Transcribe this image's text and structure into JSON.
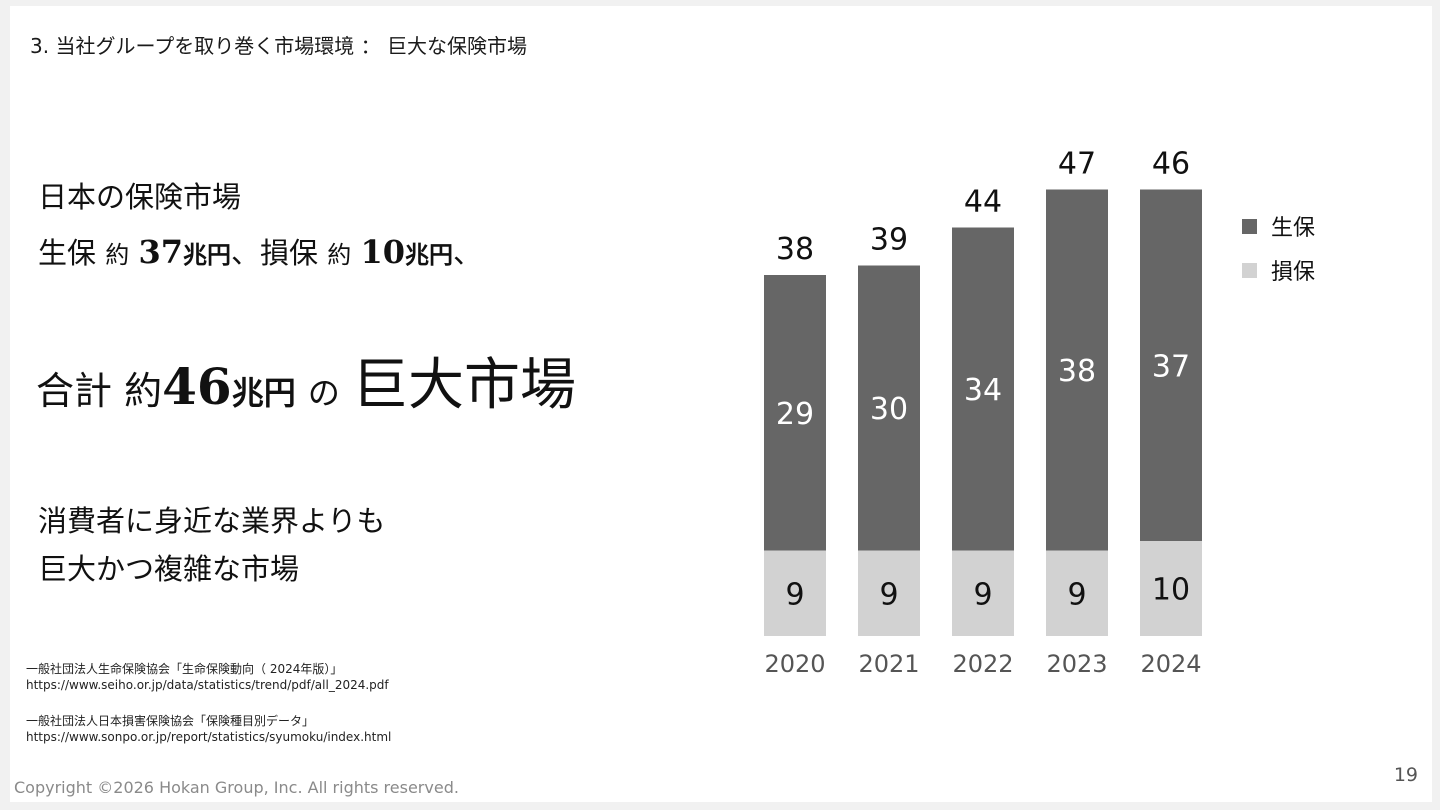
{
  "header": {
    "title": "3. 当社グループを取り巻く市場環境 ： 巨大な保険市場"
  },
  "text": {
    "line1": "日本の保険市場",
    "line2": {
      "a": "生保",
      "b": "約",
      "c": "37",
      "d": "兆円",
      "e": "、損保",
      "f": "約",
      "g": "10",
      "h": "兆円",
      "i": "、"
    },
    "line3": {
      "a": "合計",
      "b": "約",
      "c": "46",
      "d": "兆円",
      "e": "の",
      "f": "巨大市場"
    },
    "line4": "消費者に身近な業界よりも",
    "line5": "巨大かつ複雑な市場"
  },
  "sources": [
    {
      "title": "一般社団法人生命保険協会「生命保険動向（ 2024年版）」",
      "url": "https://www.seiho.or.jp/data/statistics/trend/pdf/all_2024.pdf"
    },
    {
      "title": "一般社団法人日本損害保険協会「保険種目別データ」",
      "url": "https://www.sonpo.or.jp/report/statistics/syumoku/index.html"
    }
  ],
  "footer": {
    "copyright": "Copyright ©2026 Hokan Group, Inc. All rights reserved.",
    "page_number": "19"
  },
  "colors": {
    "life": "#666666",
    "nonlife": "#d2d2d2",
    "axis_text": "#555555"
  },
  "chart_data": {
    "type": "bar",
    "stacked": true,
    "categories": [
      "2020",
      "2021",
      "2022",
      "2023",
      "2024"
    ],
    "series": [
      {
        "name": "損保",
        "values": [
          9,
          9,
          9,
          9,
          10
        ]
      },
      {
        "name": "生保",
        "values": [
          29,
          30,
          34,
          38,
          37
        ]
      }
    ],
    "totals": [
      "38",
      "39",
      "44",
      "47",
      "46"
    ],
    "legend_position": "right",
    "grid": false,
    "ylim": [
      0,
      50
    ]
  }
}
